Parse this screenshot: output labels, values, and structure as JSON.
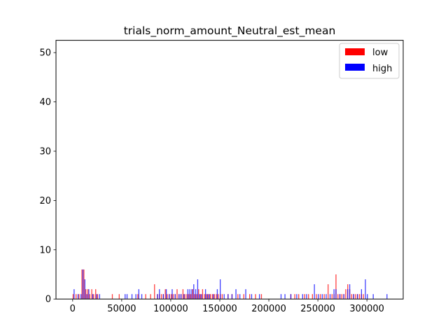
{
  "chart_data": {
    "type": "bar",
    "subtype": "overlaid-histogram",
    "title": "trials_norm_amount_Neutral_est_mean",
    "xlabel": "",
    "ylabel": "",
    "xlim": [
      -17000,
      337000
    ],
    "ylim": [
      0,
      52.5
    ],
    "xticks": [
      0,
      50000,
      100000,
      150000,
      200000,
      250000,
      300000
    ],
    "xtick_labels": [
      "0",
      "50000",
      "100000",
      "150000",
      "200000",
      "250000",
      "300000"
    ],
    "yticks": [
      0,
      10,
      20,
      30,
      40,
      50
    ],
    "ytick_labels": [
      "0",
      "10",
      "20",
      "30",
      "40",
      "50"
    ],
    "grid": false,
    "legend_position": "top-right",
    "series": [
      {
        "name": "low",
        "color": "#ff0000",
        "alpha": 0.75,
        "bins": [
          [
            0,
            1
          ],
          [
            3000,
            1
          ],
          [
            6000,
            1
          ],
          [
            9000,
            6
          ],
          [
            11000,
            6
          ],
          [
            13000,
            2
          ],
          [
            15000,
            2
          ],
          [
            17000,
            1
          ],
          [
            19000,
            2
          ],
          [
            21000,
            1
          ],
          [
            23000,
            2
          ],
          [
            25000,
            1
          ],
          [
            40000,
            1
          ],
          [
            47000,
            1
          ],
          [
            66000,
            1
          ],
          [
            74000,
            1
          ],
          [
            79000,
            1
          ],
          [
            83000,
            3
          ],
          [
            86000,
            1
          ],
          [
            88000,
            1
          ],
          [
            90000,
            1
          ],
          [
            92000,
            1
          ],
          [
            94000,
            2
          ],
          [
            96000,
            1
          ],
          [
            98000,
            1
          ],
          [
            100000,
            1
          ],
          [
            102000,
            1
          ],
          [
            104000,
            1
          ],
          [
            106000,
            2
          ],
          [
            108000,
            1
          ],
          [
            110000,
            1
          ],
          [
            112000,
            2
          ],
          [
            114000,
            1
          ],
          [
            116000,
            1
          ],
          [
            118000,
            1
          ],
          [
            120000,
            1
          ],
          [
            122000,
            2
          ],
          [
            124000,
            1
          ],
          [
            126000,
            1
          ],
          [
            128000,
            2
          ],
          [
            130000,
            1
          ],
          [
            132000,
            2
          ],
          [
            134000,
            1
          ],
          [
            136000,
            1
          ],
          [
            138000,
            1
          ],
          [
            140000,
            1
          ],
          [
            142000,
            1
          ],
          [
            144000,
            1
          ],
          [
            146000,
            1
          ],
          [
            148000,
            1
          ],
          [
            150000,
            1
          ],
          [
            152000,
            1
          ],
          [
            158000,
            1
          ],
          [
            162000,
            1
          ],
          [
            168000,
            1
          ],
          [
            174000,
            1
          ],
          [
            180000,
            1
          ],
          [
            186000,
            1
          ],
          [
            192000,
            1
          ],
          [
            222000,
            1
          ],
          [
            226000,
            1
          ],
          [
            230000,
            1
          ],
          [
            236000,
            1
          ],
          [
            240000,
            1
          ],
          [
            244000,
            1
          ],
          [
            248000,
            1
          ],
          [
            252000,
            1
          ],
          [
            256000,
            1
          ],
          [
            260000,
            3
          ],
          [
            264000,
            1
          ],
          [
            266000,
            1
          ],
          [
            268000,
            5
          ],
          [
            270000,
            1
          ],
          [
            272000,
            1
          ],
          [
            274000,
            1
          ],
          [
            276000,
            1
          ],
          [
            278000,
            2
          ],
          [
            280000,
            3
          ],
          [
            282000,
            2
          ],
          [
            284000,
            1
          ],
          [
            286000,
            1
          ],
          [
            288000,
            1
          ],
          [
            290000,
            1
          ],
          [
            292000,
            1
          ],
          [
            294000,
            1
          ],
          [
            296000,
            1
          ]
        ]
      },
      {
        "name": "high",
        "color": "#0000ff",
        "alpha": 0.75,
        "bins": [
          [
            1000,
            2
          ],
          [
            5000,
            1
          ],
          [
            8000,
            1
          ],
          [
            10000,
            6
          ],
          [
            12000,
            4
          ],
          [
            14000,
            1
          ],
          [
            16000,
            2
          ],
          [
            20000,
            1
          ],
          [
            24000,
            1
          ],
          [
            27000,
            1
          ],
          [
            53000,
            1
          ],
          [
            55000,
            1
          ],
          [
            60000,
            1
          ],
          [
            64000,
            1
          ],
          [
            67000,
            2
          ],
          [
            70000,
            1
          ],
          [
            86000,
            1
          ],
          [
            88000,
            2
          ],
          [
            92000,
            1
          ],
          [
            95000,
            2
          ],
          [
            98000,
            1
          ],
          [
            101000,
            2
          ],
          [
            104000,
            1
          ],
          [
            108000,
            1
          ],
          [
            110000,
            1
          ],
          [
            113000,
            1
          ],
          [
            117000,
            2
          ],
          [
            119000,
            2
          ],
          [
            121000,
            2
          ],
          [
            123000,
            3
          ],
          [
            125000,
            2
          ],
          [
            127000,
            4
          ],
          [
            129000,
            1
          ],
          [
            131000,
            1
          ],
          [
            135000,
            2
          ],
          [
            137000,
            1
          ],
          [
            139000,
            1
          ],
          [
            143000,
            1
          ],
          [
            147000,
            2
          ],
          [
            150000,
            4
          ],
          [
            154000,
            1
          ],
          [
            158000,
            1
          ],
          [
            162000,
            1
          ],
          [
            166000,
            2
          ],
          [
            170000,
            1
          ],
          [
            176000,
            2
          ],
          [
            182000,
            1
          ],
          [
            190000,
            1
          ],
          [
            212000,
            1
          ],
          [
            216000,
            1
          ],
          [
            222000,
            1
          ],
          [
            228000,
            1
          ],
          [
            234000,
            1
          ],
          [
            238000,
            1
          ],
          [
            246000,
            3
          ],
          [
            250000,
            1
          ],
          [
            254000,
            1
          ],
          [
            258000,
            1
          ],
          [
            262000,
            1
          ],
          [
            266000,
            2
          ],
          [
            268000,
            2
          ],
          [
            272000,
            1
          ],
          [
            276000,
            1
          ],
          [
            280000,
            2
          ],
          [
            282000,
            3
          ],
          [
            286000,
            1
          ],
          [
            290000,
            1
          ],
          [
            294000,
            2
          ],
          [
            298000,
            4
          ],
          [
            300000,
            1
          ],
          [
            306000,
            1
          ],
          [
            320000,
            1
          ]
        ]
      }
    ]
  }
}
